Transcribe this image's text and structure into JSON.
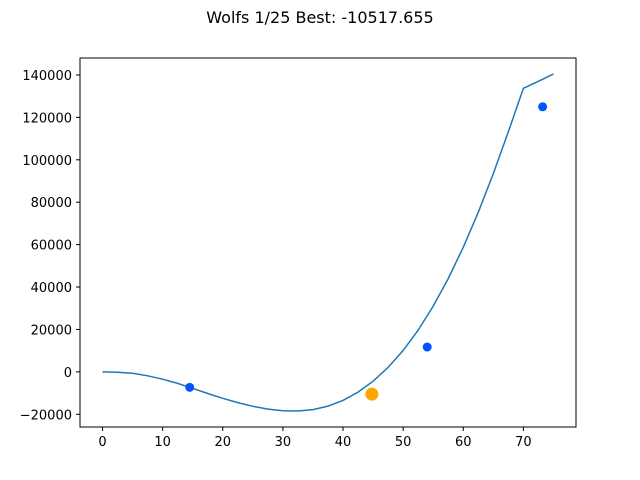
{
  "chart_data": {
    "type": "line",
    "title": "Wolfs 1/25 Best: -10517.655",
    "xlabel": "",
    "ylabel": "",
    "xlim": [
      -3.75,
      78.75
    ],
    "ylim": [
      -26000,
      148000
    ],
    "grid": false,
    "legend": "none",
    "x_ticks": [
      0,
      10,
      20,
      30,
      40,
      50,
      60,
      70
    ],
    "y_ticks": [
      -20000,
      0,
      20000,
      40000,
      60000,
      80000,
      100000,
      120000,
      140000
    ],
    "curve": {
      "color": "#1f77b4",
      "x": [
        0,
        2.5,
        5,
        7.5,
        10,
        12.5,
        15,
        17.5,
        20,
        22.5,
        25,
        27.5,
        30,
        32.5,
        35,
        37.5,
        40,
        42.5,
        45,
        47.5,
        50,
        52.5,
        55,
        57.5,
        60,
        62.5,
        65,
        67.5,
        70,
        72.5,
        75
      ],
      "y": [
        0,
        -150,
        -700,
        -1850,
        -3450,
        -5450,
        -7800,
        -10200,
        -12450,
        -14500,
        -16250,
        -17550,
        -18300,
        -18450,
        -17800,
        -16150,
        -13450,
        -9550,
        -4400,
        2100,
        10100,
        19700,
        31000,
        44000,
        58800,
        75300,
        93500,
        113300,
        133700,
        137000,
        140500
      ]
    },
    "points": {
      "color": "#0055ff",
      "x": [
        14.5,
        54,
        73.2
      ],
      "y": [
        -7300,
        11700,
        125000
      ]
    },
    "best": {
      "color": "#ffa500",
      "x": 44.8,
      "y": -10517.655
    }
  }
}
